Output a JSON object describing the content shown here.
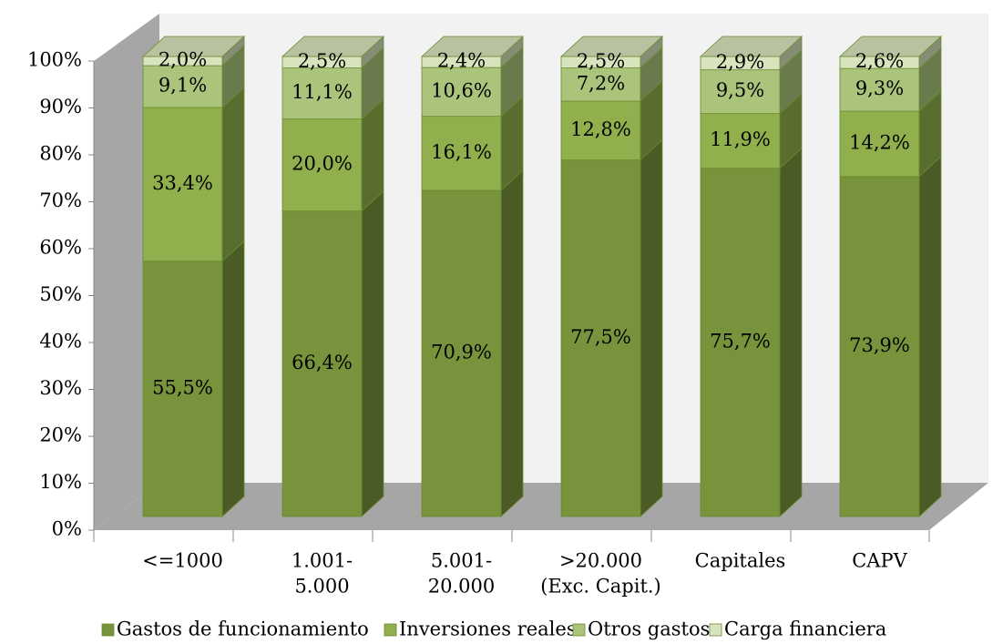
{
  "chart_data": {
    "type": "bar3d_stacked",
    "categories": [
      [
        "<=1000"
      ],
      [
        "1.001-",
        "5.000"
      ],
      [
        "5.001-",
        "20.000"
      ],
      [
        ">20.000",
        "(Exc. Capit.)"
      ],
      [
        "Capitales"
      ],
      [
        "CAPV"
      ]
    ],
    "series": [
      {
        "name": "Gastos de funcionamiento",
        "color": "#77933c",
        "values": [
          55.5,
          66.4,
          70.9,
          77.5,
          75.7,
          73.9
        ],
        "value_labels": [
          "55,5%",
          "66,4%",
          "70,9%",
          "77,5%",
          "75,7%",
          "73,9%"
        ]
      },
      {
        "name": "Inversiones reales",
        "color": "#8fb04c",
        "values": [
          33.4,
          20.0,
          16.1,
          12.8,
          11.9,
          14.2
        ],
        "value_labels": [
          "33,4%",
          "20,0%",
          "16,1%",
          "12,8%",
          "11,9%",
          "14,2%"
        ]
      },
      {
        "name": "Otros gastos",
        "color": "#aac47c",
        "values": [
          9.1,
          11.1,
          10.6,
          7.2,
          9.5,
          9.3
        ],
        "value_labels": [
          "9,1%",
          "11,1%",
          "10,6%",
          "7,2%",
          "9,5%",
          "9,3%"
        ]
      },
      {
        "name": "Carga financiera",
        "color": "#d8e4bd",
        "values": [
          2.0,
          2.5,
          2.4,
          2.5,
          2.9,
          2.6
        ],
        "value_labels": [
          "2,0%",
          "2,5%",
          "2,4%",
          "2,5%",
          "2,9%",
          "2,6%"
        ]
      }
    ],
    "ylim": [
      0,
      100
    ],
    "yticks": [
      {
        "value": 0,
        "label": "0%"
      },
      {
        "value": 10,
        "label": "10%"
      },
      {
        "value": 20,
        "label": "20%"
      },
      {
        "value": 30,
        "label": "30%"
      },
      {
        "value": 40,
        "label": "40%"
      },
      {
        "value": 50,
        "label": "50%"
      },
      {
        "value": 60,
        "label": "60%"
      },
      {
        "value": 70,
        "label": "70%"
      },
      {
        "value": 80,
        "label": "80%"
      },
      {
        "value": 90,
        "label": "90%"
      },
      {
        "value": 100,
        "label": "100%"
      }
    ],
    "legend": "bottom"
  }
}
